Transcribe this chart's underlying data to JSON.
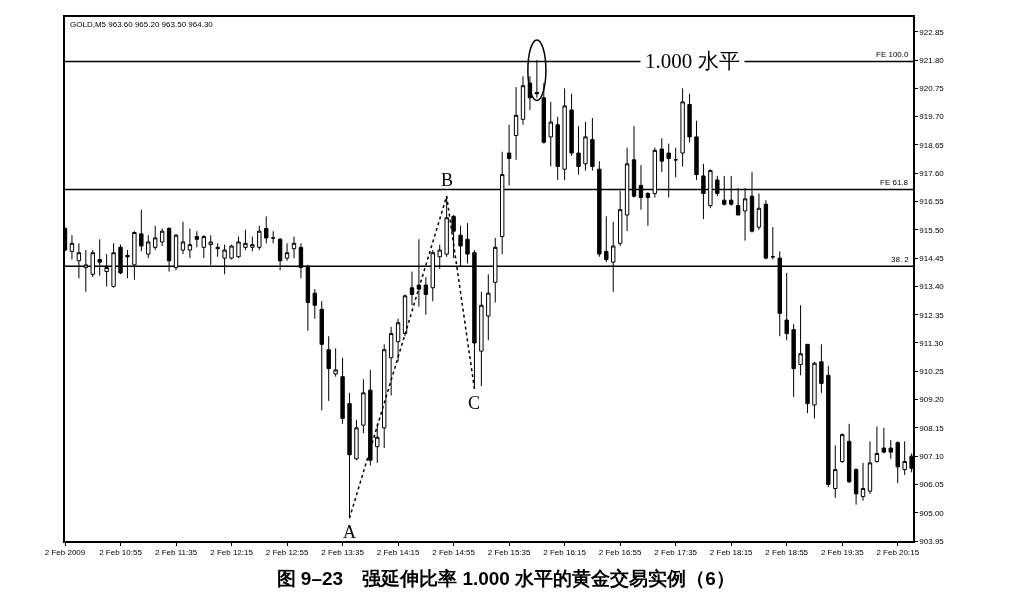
{
  "chart_data": {
    "type": "candlestick",
    "title": "图 9–23　强延伸比率 1.000 水平的黄金交易实例（6）",
    "annotations": [
      "GOLD,M5 963.60 965.20 963.50 964.30",
      {
        "text": "A",
        "x": "2009-02-02T13:40",
        "y": 904.8
      },
      {
        "text": "B",
        "x": "2009-02-02T14:50",
        "y": 916.75
      },
      {
        "text": "C",
        "x": "2009-02-02T15:10",
        "y": 909.6
      },
      {
        "text": "1.000 水平",
        "x": "2009-02-02T17:47",
        "y": 921.75
      },
      {
        "text": "38. 2",
        "x": "2009-02-02T20:26",
        "y": 914.15
      }
    ],
    "color": "#000000",
    "x": [
      "2009-02-02T10:15",
      "2009-02-02T10:20",
      "2009-02-02T10:25",
      "2009-02-02T10:30",
      "2009-02-02T10:35",
      "2009-02-02T10:40",
      "2009-02-02T10:45",
      "2009-02-02T10:50",
      "2009-02-02T10:55",
      "2009-02-02T11:00",
      "2009-02-02T11:05",
      "2009-02-02T11:10",
      "2009-02-02T11:15",
      "2009-02-02T11:20",
      "2009-02-02T11:25",
      "2009-02-02T11:30",
      "2009-02-02T11:35",
      "2009-02-02T11:40",
      "2009-02-02T11:45",
      "2009-02-02T11:50",
      "2009-02-02T11:55",
      "2009-02-02T12:00",
      "2009-02-02T12:05",
      "2009-02-02T12:10",
      "2009-02-02T12:15",
      "2009-02-02T12:20",
      "2009-02-02T12:25",
      "2009-02-02T12:30",
      "2009-02-02T12:35",
      "2009-02-02T12:40",
      "2009-02-02T12:45",
      "2009-02-02T12:50",
      "2009-02-02T12:55",
      "2009-02-02T13:00",
      "2009-02-02T13:05",
      "2009-02-02T13:10",
      "2009-02-02T13:15",
      "2009-02-02T13:20",
      "2009-02-02T13:25",
      "2009-02-02T13:30",
      "2009-02-02T13:35",
      "2009-02-02T13:40",
      "2009-02-02T13:45",
      "2009-02-02T13:50",
      "2009-02-02T13:55",
      "2009-02-02T14:00",
      "2009-02-02T14:05",
      "2009-02-02T14:10",
      "2009-02-02T14:15",
      "2009-02-02T14:20",
      "2009-02-02T14:25",
      "2009-02-02T14:30",
      "2009-02-02T14:35",
      "2009-02-02T14:40",
      "2009-02-02T14:45",
      "2009-02-02T14:50",
      "2009-02-02T14:55",
      "2009-02-02T15:00",
      "2009-02-02T15:05",
      "2009-02-02T15:10",
      "2009-02-02T15:15",
      "2009-02-02T15:20",
      "2009-02-02T15:25",
      "2009-02-02T15:30",
      "2009-02-02T15:35",
      "2009-02-02T15:40",
      "2009-02-02T15:45",
      "2009-02-02T15:50",
      "2009-02-02T15:55",
      "2009-02-02T16:00",
      "2009-02-02T16:05",
      "2009-02-02T16:10",
      "2009-02-02T16:15",
      "2009-02-02T16:20",
      "2009-02-02T16:25",
      "2009-02-02T16:30",
      "2009-02-02T16:35",
      "2009-02-02T16:40",
      "2009-02-02T16:45",
      "2009-02-02T16:50",
      "2009-02-02T16:55",
      "2009-02-02T17:00",
      "2009-02-02T17:05",
      "2009-02-02T17:10",
      "2009-02-02T17:15",
      "2009-02-02T17:20",
      "2009-02-02T17:25",
      "2009-02-02T17:30",
      "2009-02-02T17:35",
      "2009-02-02T17:40",
      "2009-02-02T17:45",
      "2009-02-02T17:50",
      "2009-02-02T17:55",
      "2009-02-02T18:00",
      "2009-02-02T18:05",
      "2009-02-02T18:10",
      "2009-02-02T18:15",
      "2009-02-02T18:20",
      "2009-02-02T18:25",
      "2009-02-02T18:30",
      "2009-02-02T18:35",
      "2009-02-02T18:40",
      "2009-02-02T18:45",
      "2009-02-02T18:50",
      "2009-02-02T18:55",
      "2009-02-02T19:00",
      "2009-02-02T19:05",
      "2009-02-02T19:10",
      "2009-02-02T19:15",
      "2009-02-02T19:20",
      "2009-02-02T19:25",
      "2009-02-02T19:30",
      "2009-02-02T19:35",
      "2009-02-02T19:40",
      "2009-02-02T19:45",
      "2009-02-02T19:50",
      "2009-02-02T19:55",
      "2009-02-02T20:00",
      "2009-02-02T20:05",
      "2009-02-02T20:10",
      "2009-02-02T20:15",
      "2009-02-02T20:20",
      "2009-02-02T20:25"
    ],
    "ohlc": [
      [
        915.55,
        915.6,
        914.7,
        914.75
      ],
      [
        914.7,
        915.3,
        914.4,
        915.0
      ],
      [
        914.35,
        915.0,
        913.7,
        914.65
      ],
      [
        914.1,
        914.75,
        913.2,
        914.2
      ],
      [
        913.85,
        914.75,
        913.75,
        914.65
      ],
      [
        914.4,
        915.15,
        913.8,
        914.3
      ],
      [
        913.95,
        914.6,
        913.4,
        914.1
      ],
      [
        913.4,
        915.0,
        913.35,
        914.65
      ],
      [
        914.85,
        914.95,
        913.85,
        913.9
      ],
      [
        914.55,
        914.75,
        913.7,
        914.5
      ],
      [
        914.2,
        915.45,
        913.65,
        915.4
      ],
      [
        915.35,
        916.25,
        914.7,
        914.9
      ],
      [
        914.6,
        915.3,
        914.45,
        915.05
      ],
      [
        914.85,
        915.65,
        914.75,
        915.2
      ],
      [
        915.05,
        915.55,
        914.9,
        915.45
      ],
      [
        915.55,
        915.6,
        913.95,
        914.35
      ],
      [
        914.1,
        915.35,
        914.0,
        915.3
      ],
      [
        914.75,
        915.8,
        914.6,
        915.05
      ],
      [
        914.75,
        915.55,
        914.45,
        914.95
      ],
      [
        915.25,
        915.45,
        914.85,
        915.15
      ],
      [
        914.85,
        915.3,
        914.45,
        915.25
      ],
      [
        914.95,
        915.3,
        914.2,
        915.05
      ],
      [
        914.8,
        915.0,
        914.5,
        914.85
      ],
      [
        914.45,
        914.95,
        913.85,
        914.75
      ],
      [
        914.45,
        914.95,
        914.4,
        914.9
      ],
      [
        914.5,
        915.25,
        914.45,
        915.05
      ],
      [
        914.85,
        915.5,
        914.75,
        915.0
      ],
      [
        914.85,
        915.25,
        914.7,
        914.95
      ],
      [
        914.85,
        915.65,
        914.75,
        915.45
      ],
      [
        915.55,
        916.0,
        915.0,
        915.2
      ],
      [
        915.2,
        915.45,
        915.0,
        915.2
      ],
      [
        915.15,
        915.2,
        914.0,
        914.35
      ],
      [
        914.45,
        915.0,
        914.35,
        914.65
      ],
      [
        914.8,
        915.25,
        914.45,
        915.0
      ],
      [
        914.85,
        915.0,
        913.7,
        914.1
      ],
      [
        914.15,
        914.2,
        911.75,
        912.8
      ],
      [
        913.15,
        913.3,
        912.2,
        912.7
      ],
      [
        912.55,
        912.85,
        908.8,
        911.25
      ],
      [
        911.05,
        911.55,
        909.15,
        910.35
      ],
      [
        910.15,
        911.1,
        910.05,
        910.3
      ],
      [
        910.05,
        910.75,
        908.3,
        908.5
      ],
      [
        909.05,
        909.45,
        904.8,
        907.15
      ],
      [
        907.0,
        908.45,
        906.95,
        908.15
      ],
      [
        908.25,
        909.95,
        907.95,
        909.45
      ],
      [
        909.55,
        910.3,
        906.75,
        906.95
      ],
      [
        907.45,
        908.3,
        906.85,
        907.8
      ],
      [
        908.15,
        911.25,
        907.4,
        911.05
      ],
      [
        910.75,
        911.9,
        909.35,
        911.65
      ],
      [
        911.35,
        912.2,
        910.6,
        912.05
      ],
      [
        911.65,
        913.1,
        911.55,
        913.05
      ],
      [
        913.35,
        913.95,
        912.7,
        913.1
      ],
      [
        913.45,
        915.15,
        912.65,
        913.3
      ],
      [
        913.45,
        913.75,
        912.35,
        913.1
      ],
      [
        913.35,
        914.75,
        912.85,
        914.65
      ],
      [
        914.5,
        914.95,
        914.05,
        914.75
      ],
      [
        914.6,
        916.75,
        914.5,
        915.95
      ],
      [
        916.0,
        916.05,
        914.45,
        915.45
      ],
      [
        915.3,
        915.65,
        914.15,
        914.9
      ],
      [
        915.15,
        915.75,
        914.25,
        914.6
      ],
      [
        914.65,
        914.75,
        909.6,
        911.3
      ],
      [
        911.0,
        913.2,
        909.7,
        912.7
      ],
      [
        912.3,
        913.85,
        911.4,
        913.15
      ],
      [
        913.55,
        915.2,
        912.8,
        914.85
      ],
      [
        915.25,
        918.4,
        914.6,
        917.55
      ],
      [
        918.35,
        919.4,
        917.15,
        918.15
      ],
      [
        919.0,
        920.8,
        918.1,
        919.75
      ],
      [
        919.6,
        921.2,
        919.4,
        920.85
      ],
      [
        920.95,
        921.2,
        919.95,
        920.4
      ],
      [
        920.6,
        921.8,
        920.4,
        920.55
      ],
      [
        920.4,
        920.95,
        918.7,
        918.75
      ],
      [
        918.95,
        920.25,
        917.85,
        919.5
      ],
      [
        919.4,
        919.7,
        917.35,
        917.85
      ],
      [
        917.75,
        920.75,
        917.35,
        920.1
      ],
      [
        919.95,
        920.55,
        918.25,
        918.35
      ],
      [
        918.35,
        919.35,
        917.55,
        917.85
      ],
      [
        917.95,
        919.5,
        917.7,
        918.95
      ],
      [
        918.85,
        919.65,
        917.7,
        917.85
      ],
      [
        917.75,
        918.05,
        914.5,
        914.6
      ],
      [
        914.7,
        916.0,
        914.3,
        914.4
      ],
      [
        914.3,
        915.8,
        913.2,
        914.9
      ],
      [
        915.0,
        916.95,
        914.9,
        916.25
      ],
      [
        916.05,
        918.55,
        915.45,
        917.95
      ],
      [
        918.1,
        919.35,
        916.7,
        916.75
      ],
      [
        917.15,
        917.9,
        916.25,
        916.7
      ],
      [
        916.85,
        916.9,
        915.65,
        916.7
      ],
      [
        916.85,
        918.55,
        916.7,
        918.45
      ],
      [
        918.5,
        918.9,
        917.65,
        918.05
      ],
      [
        918.35,
        918.7,
        916.7,
        918.15
      ],
      [
        918.1,
        918.55,
        917.45,
        918.1
      ],
      [
        918.35,
        920.75,
        917.85,
        920.25
      ],
      [
        920.15,
        920.55,
        918.75,
        918.95
      ],
      [
        918.95,
        919.55,
        917.35,
        917.55
      ],
      [
        917.5,
        917.95,
        915.9,
        916.85
      ],
      [
        916.4,
        917.75,
        916.3,
        917.7
      ],
      [
        917.35,
        917.5,
        916.75,
        916.85
      ],
      [
        916.6,
        917.5,
        916.4,
        916.45
      ],
      [
        916.6,
        917.5,
        916.4,
        916.45
      ],
      [
        916.4,
        917.05,
        916.05,
        916.05
      ],
      [
        916.2,
        917.05,
        915.1,
        916.65
      ],
      [
        916.75,
        917.65,
        915.4,
        915.45
      ],
      [
        915.6,
        916.85,
        915.5,
        916.3
      ],
      [
        916.45,
        916.6,
        914.4,
        914.45
      ],
      [
        914.5,
        915.6,
        914.4,
        914.5
      ],
      [
        914.45,
        914.7,
        911.55,
        912.4
      ],
      [
        912.15,
        913.9,
        911.4,
        911.65
      ],
      [
        911.8,
        912.0,
        909.3,
        910.35
      ],
      [
        910.5,
        912.7,
        910.1,
        910.9
      ],
      [
        911.25,
        911.25,
        908.7,
        909.05
      ],
      [
        909.0,
        910.6,
        908.5,
        910.55
      ],
      [
        910.6,
        911.25,
        909.45,
        909.8
      ],
      [
        910.1,
        910.45,
        905.95,
        906.05
      ],
      [
        905.9,
        907.5,
        905.55,
        906.6
      ],
      [
        906.9,
        907.95,
        906.85,
        907.9
      ],
      [
        907.65,
        908.3,
        906.1,
        906.15
      ],
      [
        906.6,
        906.65,
        905.3,
        905.7
      ],
      [
        905.6,
        906.85,
        905.45,
        905.9
      ],
      [
        905.8,
        907.65,
        905.7,
        906.85
      ],
      [
        906.9,
        908.2,
        906.85,
        907.2
      ],
      [
        907.4,
        908.15,
        907.2,
        907.25
      ],
      [
        907.4,
        907.7,
        907.0,
        907.25
      ],
      [
        907.6,
        907.65,
        906.1,
        906.7
      ],
      [
        906.6,
        907.65,
        906.4,
        906.9
      ],
      [
        907.1,
        907.2,
        906.5,
        906.65
      ]
    ],
    "series": [
      {
        "type": "line",
        "x": [
          "2009-02-02T13:40",
          "2009-02-02T14:50",
          "2009-02-02T15:10"
        ],
        "values": [
          904.8,
          916.75,
          909.6
        ],
        "color": "#000000",
        "line_style": "dotted"
      }
    ],
    "ref_lines": [
      {
        "axis": "y",
        "value": 921.75,
        "label": "FE 100.0",
        "color": "#000000"
      },
      {
        "axis": "y",
        "value": 917.0,
        "label": "FE 61.8",
        "color": "#000000"
      },
      {
        "axis": "y",
        "value": 914.15,
        "color": "#000000"
      }
    ],
    "xlim": [
      "2009-02-02T10:15",
      "2009-02-02T20:26"
    ],
    "xticks": [
      {
        "value": "2009-02-02T10:15",
        "label": "2 Feb 2009"
      },
      {
        "value": "2009-02-02T10:55",
        "label": "2 Feb 10:55"
      },
      {
        "value": "2009-02-02T11:35",
        "label": "2 Feb 11:35"
      },
      {
        "value": "2009-02-02T12:15",
        "label": "2 Feb 12:15"
      },
      {
        "value": "2009-02-02T12:55",
        "label": "2 Feb 12:55"
      },
      {
        "value": "2009-02-02T13:35",
        "label": "2 Feb 13:35"
      },
      {
        "value": "2009-02-02T14:15",
        "label": "2 Feb 14:15"
      },
      {
        "value": "2009-02-02T14:55",
        "label": "2 Feb 14:55"
      },
      {
        "value": "2009-02-02T15:35",
        "label": "2 Feb 15:35"
      },
      {
        "value": "2009-02-02T16:15",
        "label": "2 Feb 16:15"
      },
      {
        "value": "2009-02-02T16:55",
        "label": "2 Feb 16:55"
      },
      {
        "value": "2009-02-02T17:35",
        "label": "2 Feb 17:35"
      },
      {
        "value": "2009-02-02T18:15",
        "label": "2 Feb 18:15"
      },
      {
        "value": "2009-02-02T18:55",
        "label": "2 Feb 18:55"
      },
      {
        "value": "2009-02-02T19:35",
        "label": "2 Feb 19:35"
      },
      {
        "value": "2009-02-02T20:15",
        "label": "2 Feb 20:15"
      }
    ],
    "ylim": [
      903.95,
      923.4
    ],
    "yticks": [
      922.85,
      {
        "value": 921.8,
        "label": "921.80"
      },
      920.75,
      {
        "value": 919.7,
        "label": "919.70"
      },
      918.65,
      {
        "value": 917.6,
        "label": "917.60"
      },
      916.55,
      {
        "value": 915.5,
        "label": "915.50"
      },
      914.45,
      {
        "value": 913.4,
        "label": "913.40"
      },
      912.35,
      {
        "value": 911.3,
        "label": "911.30"
      },
      910.25,
      {
        "value": 909.2,
        "label": "909.20"
      },
      908.15,
      {
        "value": 907.1,
        "label": "907.10"
      },
      906.05,
      {
        "value": 905.0,
        "label": "905.00"
      },
      903.95
    ]
  }
}
